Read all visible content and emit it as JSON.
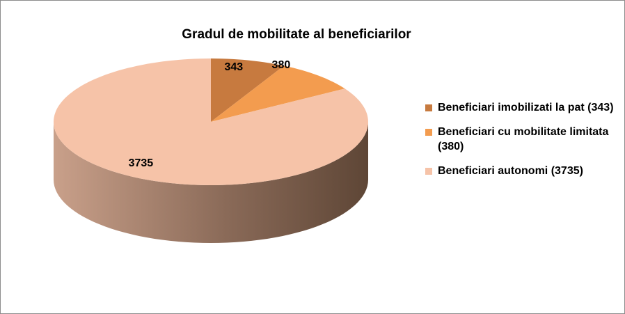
{
  "chart_data": {
    "type": "pie",
    "title": "Gradul de mobilitate al beneficiarilor",
    "categories": [
      "Beneficiari imobilizati la pat (343)",
      "Beneficiari cu mobilitate limitata (380)",
      "Beneficiari  autonomi (3735)"
    ],
    "values": [
      343,
      380,
      3735
    ],
    "data_labels": [
      "343",
      "380",
      "3735"
    ],
    "colors": [
      "#c77a3f",
      "#f39c4f",
      "#f6c3a8"
    ],
    "side_colors": [
      "#9a5a2b",
      "#c0742f",
      "#c19a85"
    ],
    "legend_position": "right",
    "style": "3d-pie"
  }
}
